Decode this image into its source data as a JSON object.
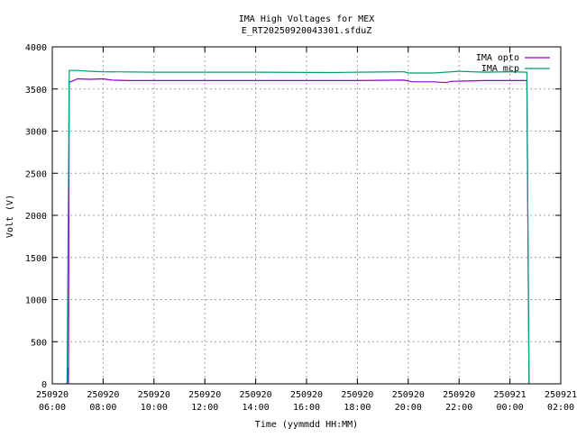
{
  "chart_data": {
    "type": "line",
    "title": "IMA High Voltages for MEX",
    "subtitle": "E_RT20250920043301.sfduZ",
    "xlabel": "Time (yymmdd HH:MM)",
    "ylabel": "Volt (V)",
    "xlim": [
      "2025-09-20 06:00",
      "2025-09-21 02:00"
    ],
    "ylim": [
      0,
      4000
    ],
    "grid": true,
    "legend_position": "top-right",
    "x_ticks": [
      {
        "date": "250920",
        "time": "06:00",
        "hour": 0
      },
      {
        "date": "250920",
        "time": "08:00",
        "hour": 2
      },
      {
        "date": "250920",
        "time": "10:00",
        "hour": 4
      },
      {
        "date": "250920",
        "time": "12:00",
        "hour": 6
      },
      {
        "date": "250920",
        "time": "14:00",
        "hour": 8
      },
      {
        "date": "250920",
        "time": "16:00",
        "hour": 10
      },
      {
        "date": "250920",
        "time": "18:00",
        "hour": 12
      },
      {
        "date": "250920",
        "time": "20:00",
        "hour": 14
      },
      {
        "date": "250920",
        "time": "22:00",
        "hour": 16
      },
      {
        "date": "250921",
        "time": "00:00",
        "hour": 18
      },
      {
        "date": "250921",
        "time": "02:00",
        "hour": 20
      }
    ],
    "y_ticks": [
      0,
      500,
      1000,
      1500,
      2000,
      2500,
      3000,
      3500,
      4000
    ],
    "series": [
      {
        "name": "IMA opto",
        "color": "#9400d3",
        "points": [
          [
            "06:35",
            0
          ],
          [
            "06:37",
            200
          ],
          [
            "06:38",
            0
          ],
          [
            "06:40",
            3580
          ],
          [
            "07:00",
            3620
          ],
          [
            "07:30",
            3615
          ],
          [
            "08:00",
            3620
          ],
          [
            "08:20",
            3605
          ],
          [
            "09:00",
            3600
          ],
          [
            "12:00",
            3600
          ],
          [
            "15:00",
            3600
          ],
          [
            "18:00",
            3600
          ],
          [
            "19:50",
            3605
          ],
          [
            "20:10",
            3585
          ],
          [
            "21:00",
            3585
          ],
          [
            "21:30",
            3575
          ],
          [
            "21:40",
            3590
          ],
          [
            "23:00",
            3600
          ],
          [
            "00:40",
            3600
          ],
          [
            "00:45",
            0
          ]
        ]
      },
      {
        "name": "IMA mcp",
        "color": "#009e73",
        "points": [
          [
            "06:35",
            0
          ],
          [
            "06:40",
            3720
          ],
          [
            "07:00",
            3720
          ],
          [
            "07:30",
            3710
          ],
          [
            "08:00",
            3705
          ],
          [
            "10:00",
            3700
          ],
          [
            "14:00",
            3700
          ],
          [
            "17:00",
            3695
          ],
          [
            "18:00",
            3700
          ],
          [
            "19:50",
            3705
          ],
          [
            "20:00",
            3690
          ],
          [
            "21:00",
            3690
          ],
          [
            "22:00",
            3710
          ],
          [
            "23:00",
            3700
          ],
          [
            "00:00",
            3705
          ],
          [
            "00:40",
            3700
          ],
          [
            "00:45",
            0
          ]
        ]
      }
    ]
  }
}
